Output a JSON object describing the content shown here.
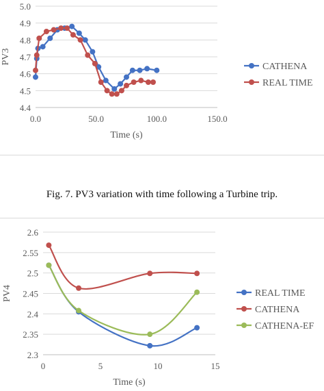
{
  "caption": "Fig. 7. PV3 variation with time following a Turbine trip.",
  "chart_data": [
    {
      "type": "line",
      "title": "",
      "xlabel": "Time (s)",
      "ylabel": "PV3",
      "xlim": [
        0,
        150
      ],
      "ylim": [
        4.4,
        5.0
      ],
      "xticks": [
        0,
        50,
        100,
        150
      ],
      "xtick_labels": [
        "0.0",
        "50.0",
        "100.0",
        "150.0"
      ],
      "yticks": [
        4.4,
        4.5,
        4.6,
        4.7,
        4.8,
        4.9,
        5.0
      ],
      "ytick_labels": [
        "4.4",
        "4.5",
        "4.6",
        "4.7",
        "4.8",
        "4.9",
        "5.0"
      ],
      "grid": "horizontal",
      "legend": "right",
      "smooth": false,
      "series": [
        {
          "name": "CATHENA",
          "color": "#4472c4",
          "x": [
            0,
            1,
            2,
            6,
            12,
            18,
            24,
            30,
            36,
            41,
            47,
            52,
            58,
            65,
            70,
            75,
            80,
            86,
            92,
            100
          ],
          "y": [
            4.58,
            4.69,
            4.75,
            4.76,
            4.81,
            4.86,
            4.87,
            4.88,
            4.84,
            4.8,
            4.73,
            4.64,
            4.56,
            4.51,
            4.54,
            4.58,
            4.62,
            4.62,
            4.63,
            4.62
          ]
        },
        {
          "name": "REAL TIME",
          "color": "#c0504d",
          "x": [
            0,
            1,
            3,
            9,
            15,
            21,
            26,
            31,
            37,
            43,
            49,
            54,
            59,
            63,
            67,
            71,
            75,
            81,
            87,
            93,
            97
          ],
          "y": [
            4.62,
            4.71,
            4.81,
            4.85,
            4.86,
            4.87,
            4.87,
            4.83,
            4.8,
            4.71,
            4.66,
            4.55,
            4.5,
            4.48,
            4.48,
            4.5,
            4.53,
            4.55,
            4.56,
            4.55,
            4.55
          ]
        }
      ]
    },
    {
      "type": "line",
      "title": "",
      "xlabel": "Time (s)",
      "ylabel": "PV4",
      "xlim": [
        0,
        15
      ],
      "ylim": [
        2.3,
        2.6
      ],
      "xticks": [
        0,
        5,
        10,
        15
      ],
      "xtick_labels": [
        "0",
        "5",
        "10",
        "15"
      ],
      "yticks": [
        2.3,
        2.35,
        2.4,
        2.45,
        2.5,
        2.55,
        2.6
      ],
      "ytick_labels": [
        "2.3",
        "2.35",
        "2.4",
        "2.45",
        "2.5",
        "2.55",
        "2.6"
      ],
      "grid": "horizontal",
      "legend": "right",
      "smooth": true,
      "series": [
        {
          "name": "REAL TIME",
          "color": "#4472c4",
          "x": [
            0.5,
            3.1,
            9.3,
            13.4
          ],
          "y": [
            2.519,
            2.405,
            2.322,
            2.366
          ]
        },
        {
          "name": "CATHENA",
          "color": "#c0504d",
          "x": [
            0.5,
            3.1,
            9.3,
            13.4
          ],
          "y": [
            2.568,
            2.463,
            2.499,
            2.499
          ]
        },
        {
          "name": "CATHENA-EF",
          "color": "#9bbb59",
          "x": [
            0.5,
            3.1,
            9.3,
            13.4
          ],
          "y": [
            2.519,
            2.408,
            2.35,
            2.453
          ]
        }
      ]
    }
  ]
}
